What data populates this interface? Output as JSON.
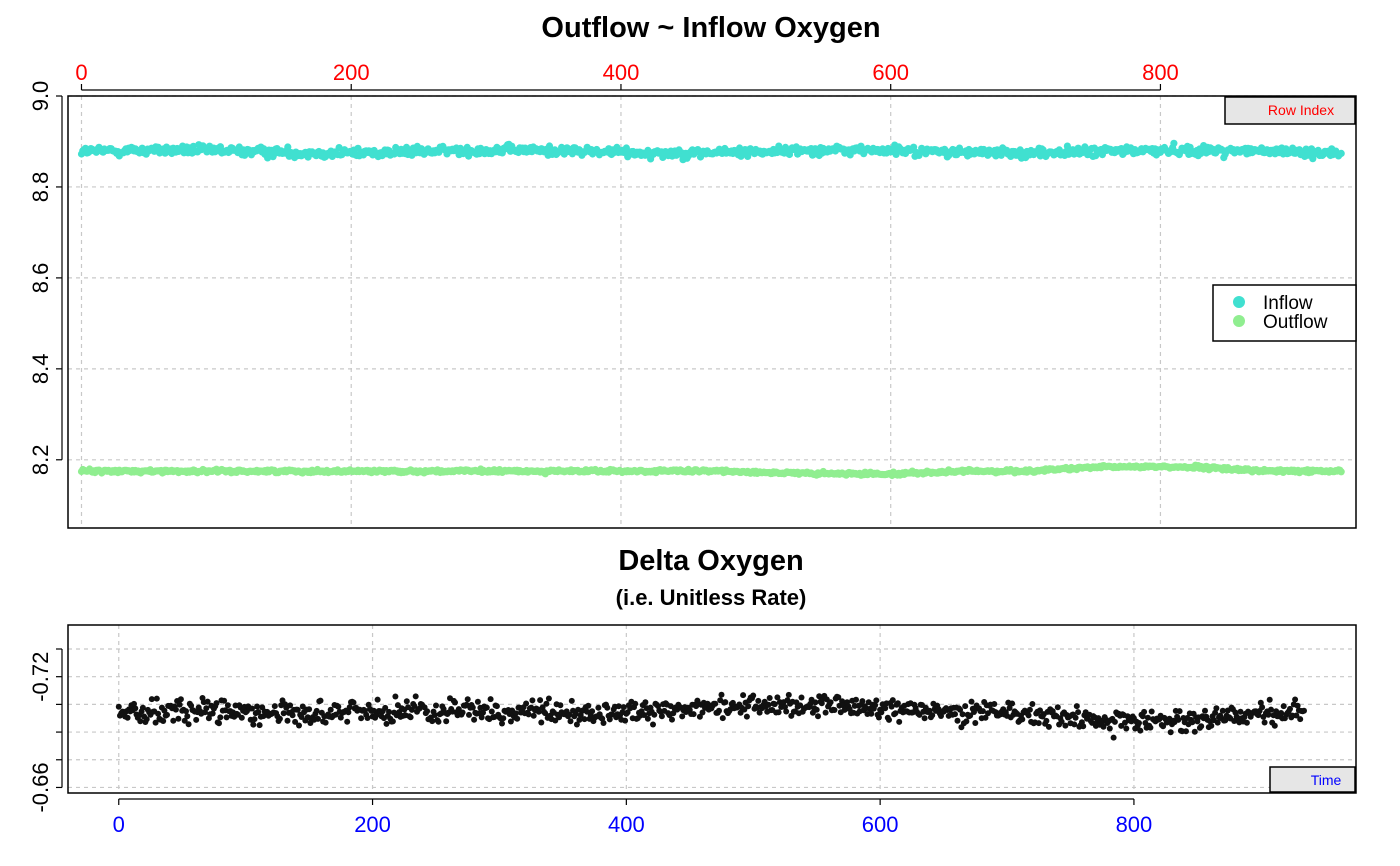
{
  "colors": {
    "inflow": "#40E0D0",
    "outflow": "#90EE90",
    "delta": "#111111",
    "row_index_axis": "#FF0000",
    "time_axis": "#0000FF",
    "tag_fill": "#E6E6E6"
  },
  "chart_data": [
    {
      "type": "scatter",
      "title": "Outflow ~ Inflow Oxygen",
      "x_axis_position": "top",
      "x_tick_color": "red",
      "xlim": [
        -10,
        945
      ],
      "ylim": [
        8.05,
        9.0
      ],
      "xticks": [
        "0",
        "200",
        "400",
        "600",
        "800"
      ],
      "xtick_values": [
        0,
        200,
        400,
        600,
        800
      ],
      "yticks": [
        "8.2",
        "8.4",
        "8.6",
        "8.8",
        "9.0"
      ],
      "ytick_values": [
        8.2,
        8.4,
        8.6,
        8.8,
        9.0
      ],
      "grid": true,
      "tag": "Row Index",
      "legend": {
        "placement": "right",
        "entries": [
          "Inflow",
          "Outflow"
        ]
      },
      "series": [
        {
          "name": "Inflow",
          "color": "#40E0D0",
          "n": 935,
          "x_range": [
            0,
            934
          ],
          "y_center": 8.878,
          "y_spread": 0.012
        },
        {
          "name": "Outflow",
          "color": "#90EE90",
          "n": 935,
          "x_range": [
            0,
            934
          ],
          "y_center": 8.175,
          "y_spread": 0.004
        }
      ]
    },
    {
      "type": "scatter",
      "title": "Delta Oxygen",
      "subtitle": "(i.e. Unitless Rate)",
      "x_axis_position": "bottom",
      "x_tick_color": "blue",
      "xlim": [
        -40,
        975
      ],
      "ylim": [
        -0.748,
        -0.657
      ],
      "y_reversed": true,
      "xticks": [
        "0",
        "200",
        "400",
        "600",
        "800"
      ],
      "xtick_values": [
        0,
        200,
        400,
        600,
        800
      ],
      "yticks": [
        "-0.72",
        "-0.66"
      ],
      "ytick_values": [
        -0.72,
        -0.66
      ],
      "minor_ytick_values": [
        -0.735,
        -0.705,
        -0.69,
        -0.675
      ],
      "grid": true,
      "tag": "Time",
      "series": [
        {
          "name": "Delta",
          "color": "#111111",
          "n": 935,
          "x_range": [
            0,
            934
          ],
          "y_center": -0.7005,
          "y_spread": 0.0078
        }
      ]
    }
  ]
}
